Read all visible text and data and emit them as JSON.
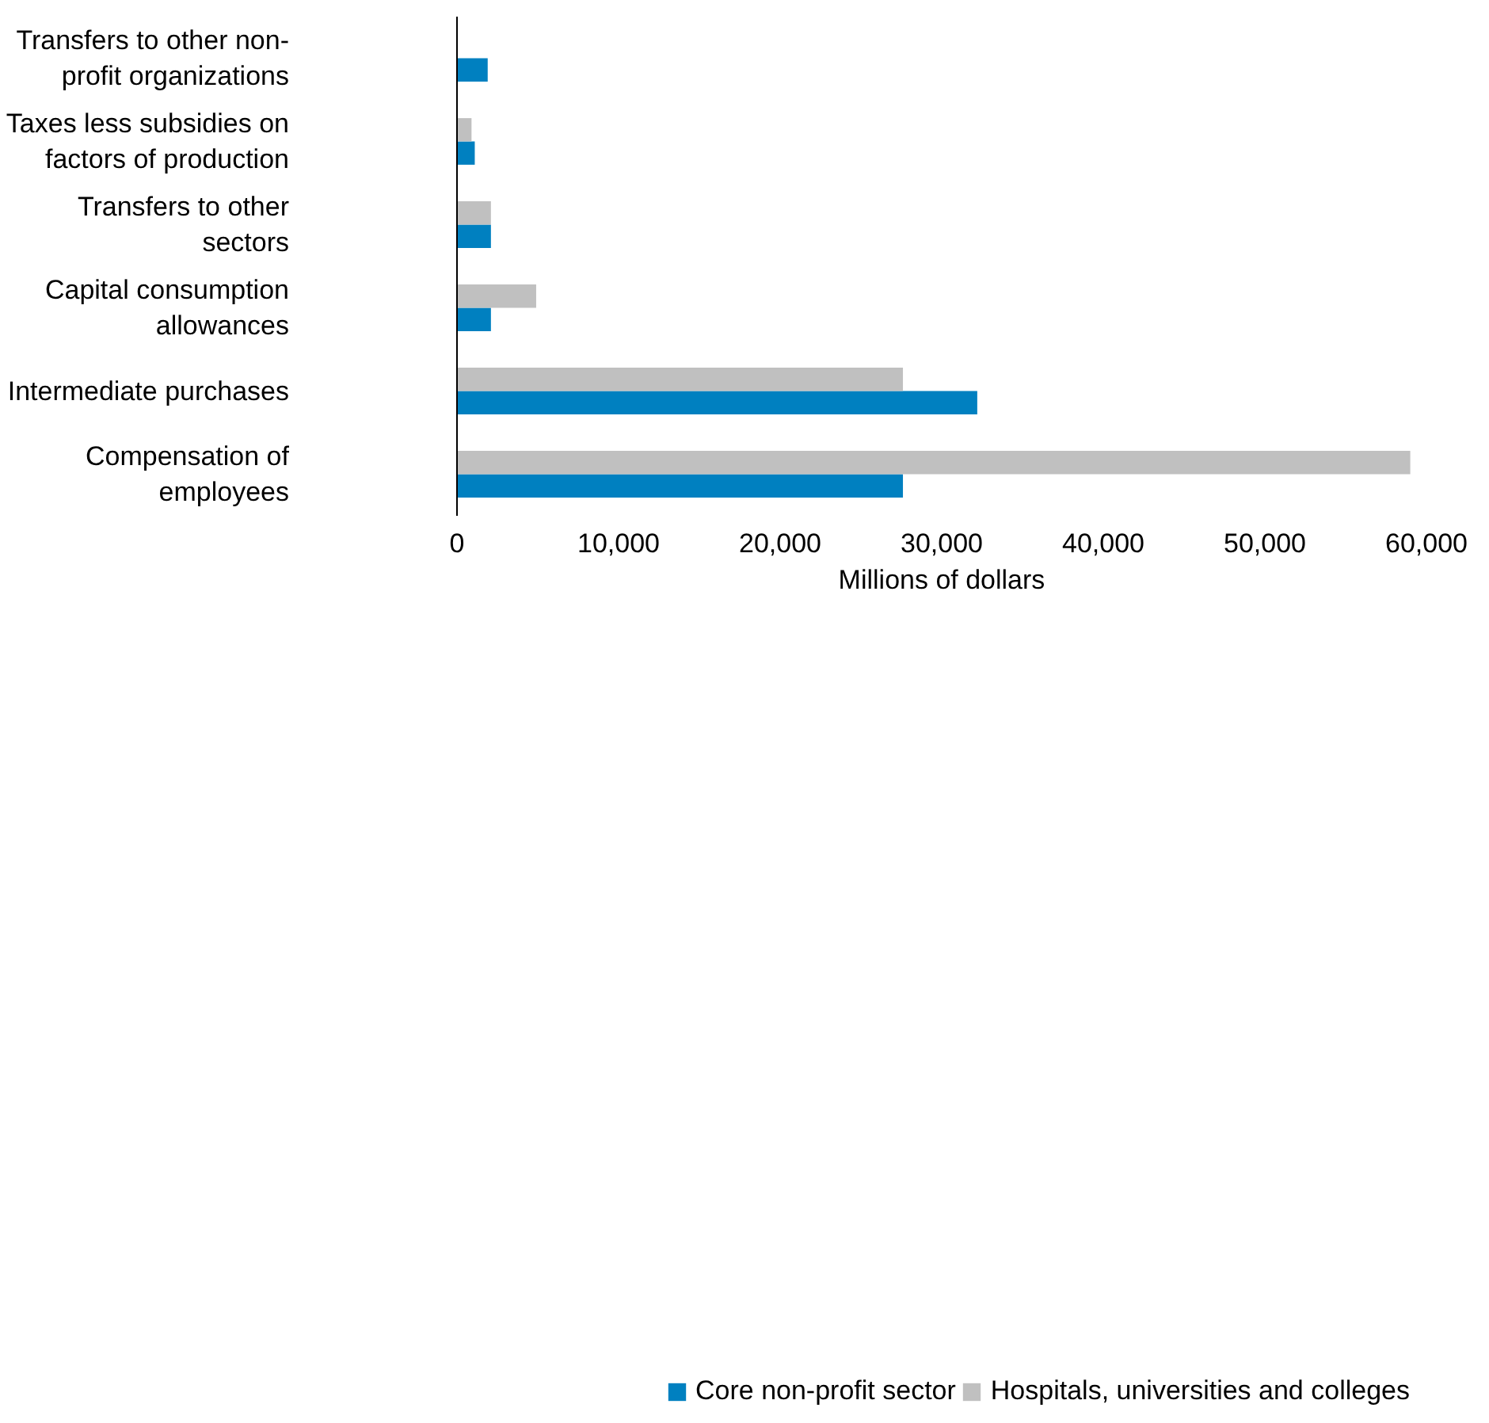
{
  "chart_data": {
    "type": "bar",
    "orientation": "horizontal",
    "xlabel": "Millions of dollars",
    "categories": [
      "Transfers to other non-profit organizations",
      "Taxes less subsidies on factors of production",
      "Transfers to other sectors",
      "Capital consumption allowances",
      "Intermediate purchases",
      "Compensation of employees"
    ],
    "series": [
      {
        "name": "Core non-profit sector",
        "color": "#0080c0",
        "values": [
          1900,
          1100,
          2100,
          2100,
          32200,
          27600
        ]
      },
      {
        "name": "Hospitals, universities and colleges",
        "color": "#c0c0c0",
        "values": [
          null,
          900,
          2100,
          4900,
          27600,
          59000
        ]
      }
    ],
    "xlim": [
      0,
      60000
    ],
    "xticks": [
      {
        "value": 0,
        "label": "0"
      },
      {
        "value": 10000,
        "label": "10,000"
      },
      {
        "value": 20000,
        "label": "20,000"
      },
      {
        "value": 30000,
        "label": "30,000"
      },
      {
        "value": 40000,
        "label": "40,000"
      },
      {
        "value": 50000,
        "label": "50,000"
      },
      {
        "value": 60000,
        "label": "60,000"
      }
    ],
    "grid": false,
    "legend": "bottom"
  }
}
